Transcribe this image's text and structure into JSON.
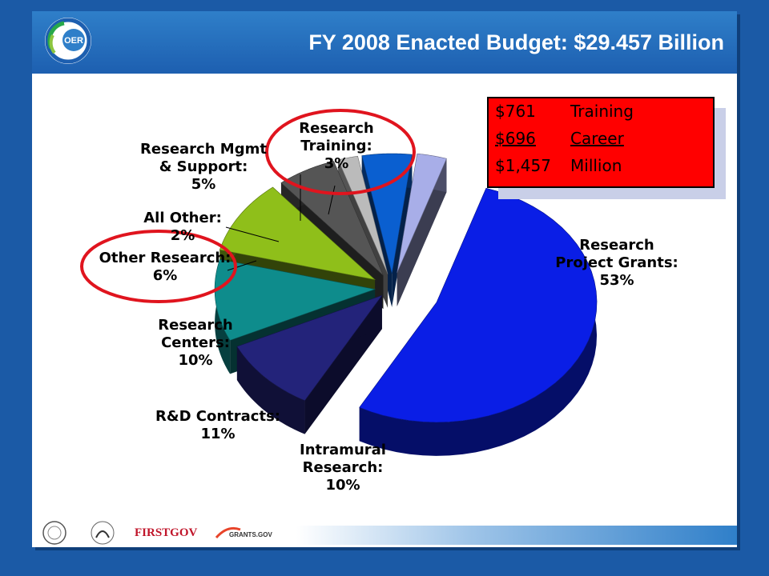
{
  "header": {
    "title": "FY 2008 Enacted Budget: $29.457 Billion",
    "logo_text": "OER"
  },
  "chart_data": {
    "type": "pie",
    "title": "FY 2008 Enacted Budget: $29.457 Billion",
    "slices": [
      {
        "label_lines": [
          "Research",
          "Project Grants:"
        ],
        "value": 53,
        "value_text": "53%",
        "color": "#0a1ee6"
      },
      {
        "label_lines": [
          "Intramural",
          "Research:"
        ],
        "value": 10,
        "value_text": "10%",
        "color": "#23237a"
      },
      {
        "label_lines": [
          "R&D Contracts:"
        ],
        "value": 11,
        "value_text": "11%",
        "color": "#0e8c8c"
      },
      {
        "label_lines": [
          "Research",
          "Centers:"
        ],
        "value": 10,
        "value_text": "10%",
        "color": "#8fbf1a"
      },
      {
        "label_lines": [
          "Other Research:"
        ],
        "value": 6,
        "value_text": "6%",
        "color": "#555555"
      },
      {
        "label_lines": [
          "All Other:"
        ],
        "value": 2,
        "value_text": "2%",
        "color": "#bbbbbb"
      },
      {
        "label_lines": [
          "Research Mgmt",
          "& Support:"
        ],
        "value": 5,
        "value_text": "5%",
        "color": "#0a5fd0"
      },
      {
        "label_lines": [
          "Research",
          "Training:"
        ],
        "value": 3,
        "value_text": "3%",
        "color": "#a8aee8"
      }
    ],
    "highlighted": [
      "Research Training",
      "Other Research"
    ]
  },
  "callout": {
    "rows": [
      {
        "amount": "$761",
        "text": "Training",
        "underline": false
      },
      {
        "amount": "$696",
        "text": "Career",
        "underline": true
      },
      {
        "amount": "$1,457",
        "text": "Million",
        "underline": false
      }
    ],
    "color": "#ff0000"
  },
  "footer": {
    "firstgov": "FIRSTGOV",
    "grantsgov": "GRANTS.GOV"
  },
  "colors": {
    "title_bar": "#1d5fb0",
    "highlight_ring": "#e0141e"
  }
}
